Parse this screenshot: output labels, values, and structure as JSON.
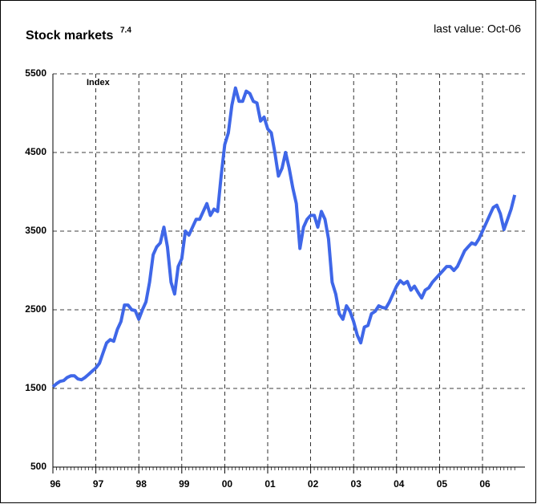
{
  "chart_data": {
    "type": "line",
    "title": "Stock markets",
    "title_superscript": "7.4",
    "subtitle": "last value: Oct-06",
    "y_label": "Index",
    "categories": [
      "96",
      null,
      null,
      null,
      null,
      null,
      null,
      null,
      null,
      null,
      null,
      null,
      "97",
      null,
      null,
      null,
      null,
      null,
      null,
      null,
      null,
      null,
      null,
      null,
      "98",
      null,
      null,
      null,
      null,
      null,
      null,
      null,
      null,
      null,
      null,
      null,
      "99",
      null,
      null,
      null,
      null,
      null,
      null,
      null,
      null,
      null,
      null,
      null,
      "00",
      null,
      null,
      null,
      null,
      null,
      null,
      null,
      null,
      null,
      null,
      null,
      "01",
      null,
      null,
      null,
      null,
      null,
      null,
      null,
      null,
      null,
      null,
      null,
      "02",
      null,
      null,
      null,
      null,
      null,
      null,
      null,
      null,
      null,
      null,
      null,
      "03",
      null,
      null,
      null,
      null,
      null,
      null,
      null,
      null,
      null,
      null,
      null,
      "04",
      null,
      null,
      null,
      null,
      null,
      null,
      null,
      null,
      null,
      null,
      null,
      "05",
      null,
      null,
      null,
      null,
      null,
      null,
      null,
      null,
      null,
      null,
      null,
      "06",
      null,
      null,
      null,
      null,
      null,
      null,
      null,
      null,
      null
    ],
    "series": [
      {
        "name": "Index",
        "color": "#3f67e8",
        "values": [
          1520,
          1560,
          1590,
          1600,
          1640,
          1660,
          1660,
          1620,
          1610,
          1640,
          1680,
          1720,
          1760,
          1820,
          1950,
          2080,
          2120,
          2100,
          2250,
          2350,
          2560,
          2560,
          2500,
          2490,
          2380,
          2500,
          2600,
          2850,
          3200,
          3300,
          3350,
          3550,
          3300,
          2850,
          2700,
          3050,
          3150,
          3500,
          3450,
          3550,
          3650,
          3650,
          3750,
          3850,
          3700,
          3780,
          3750,
          4200,
          4600,
          4750,
          5100,
          5320,
          5150,
          5150,
          5280,
          5250,
          5150,
          5130,
          4900,
          4950,
          4800,
          4750,
          4500,
          4200,
          4300,
          4500,
          4300,
          4050,
          3850,
          3280,
          3550,
          3650,
          3700,
          3700,
          3550,
          3750,
          3650,
          3400,
          2850,
          2700,
          2450,
          2380,
          2550,
          2480,
          2350,
          2180,
          2080,
          2280,
          2300,
          2450,
          2480,
          2550,
          2530,
          2520,
          2600,
          2700,
          2800,
          2870,
          2830,
          2860,
          2750,
          2800,
          2720,
          2650,
          2750,
          2780,
          2850,
          2900,
          2950,
          3000,
          3050,
          3050,
          3000,
          3050,
          3150,
          3250,
          3300,
          3350,
          3330,
          3400,
          3500,
          3600,
          3700,
          3800,
          3830,
          3720,
          3520,
          3650,
          3780,
          3960
        ]
      }
    ],
    "ylim": [
      500,
      5500
    ],
    "yticks": [
      500,
      1500,
      2500,
      3500,
      4500,
      5500
    ],
    "grid": true
  }
}
